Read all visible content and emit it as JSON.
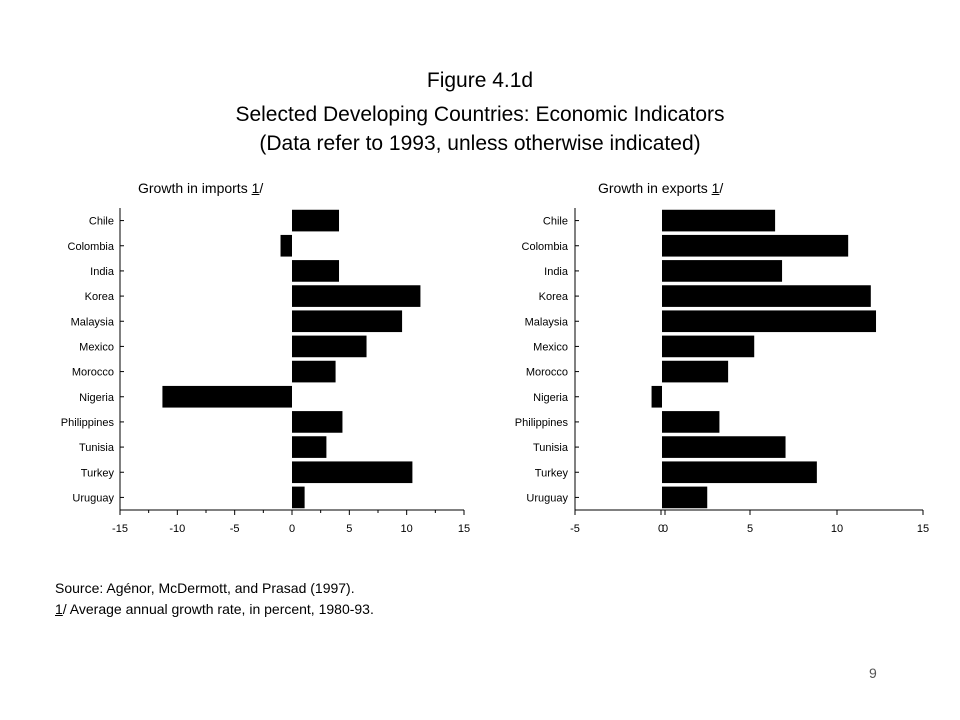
{
  "figure": {
    "title": "Figure 4.1d",
    "subtitle": "Selected Developing Countries: Economic Indicators",
    "note": "(Data refer to 1993, unless otherwise indicated)"
  },
  "footnotes": {
    "source": "Source: Agénor, McDermott, and Prasad (1997).",
    "footnote_mark": "1",
    "footnote_text": "/ Average annual growth rate, in percent, 1980-93."
  },
  "page_number": "9",
  "chart_data": [
    {
      "type": "bar",
      "orientation": "horizontal",
      "title_text": "Growth in imports ",
      "title_mark": "1",
      "title_suffix": "/",
      "categories": [
        "Chile",
        "Colombia",
        "India",
        "Korea",
        "Malaysia",
        "Mexico",
        "Morocco",
        "Nigeria",
        "Philippines",
        "Tunisia",
        "Turkey",
        "Uruguay"
      ],
      "values": [
        4.1,
        -1.0,
        4.1,
        11.2,
        9.6,
        6.5,
        3.8,
        -11.3,
        4.4,
        3.0,
        10.5,
        1.1
      ],
      "xlim": [
        -15,
        15
      ],
      "xticks": [
        "-15",
        "-10",
        "-5",
        "0",
        "5",
        "10",
        "15"
      ],
      "bar_color": "#000000",
      "grid": false
    },
    {
      "type": "bar",
      "orientation": "horizontal",
      "title_text": "Growth in exports ",
      "title_mark": "1",
      "title_suffix": "/",
      "categories": [
        "Chile",
        "Colombia",
        "India",
        "Korea",
        "Malaysia",
        "Mexico",
        "Morocco",
        "Nigeria",
        "Philippines",
        "Tunisia",
        "Turkey",
        "Uruguay"
      ],
      "values": [
        6.5,
        10.7,
        6.9,
        12.0,
        12.3,
        5.3,
        3.8,
        -0.6,
        3.3,
        7.1,
        8.9,
        2.6
      ],
      "xlim": [
        -5,
        15
      ],
      "xticks": [
        "-5",
        "0",
        "0",
        "5",
        "10",
        "15"
      ],
      "bar_color": "#000000",
      "grid": false
    }
  ]
}
